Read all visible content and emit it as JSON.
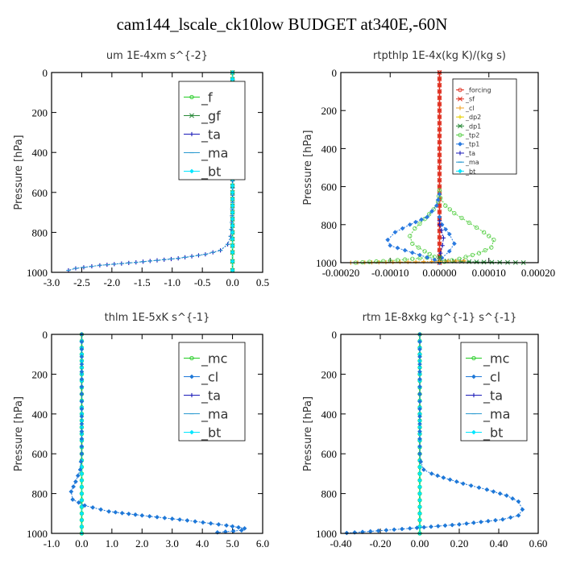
{
  "title": "cam144_lscale_ck10low  BUDGET at340E,-60N",
  "colors": {
    "f": "#22cc22",
    "gf": "#2a8a3a",
    "ta": "#1a1ab8",
    "ma": "#2a9ad0",
    "bt": "#00e6ff",
    "mc": "#22cc22",
    "cl": "#1e78d8",
    "forcing": "#e03020",
    "sf": "#e03020",
    "cl_orange": "#f0a020",
    "dp2": "#e8d000",
    "dp1": "#2a8a3a",
    "tp2": "#5ad04a",
    "tp1": "#2a7ae0"
  },
  "chart_data": [
    {
      "type": "line",
      "title": "um   1E-4xm s^{-2}",
      "ylabel": "Pressure [hPa]",
      "xlim": [
        -3.0,
        0.5
      ],
      "ylim": [
        1000,
        0
      ],
      "xticks": [
        -3.0,
        -2.5,
        -2.0,
        -1.5,
        -1.0,
        -0.5,
        0.0,
        0.5
      ],
      "xticklabels": [
        "-3.0",
        "-2.5",
        "-2.0",
        "-1.5",
        "-1.0",
        "-0.5",
        "0.0",
        "0.5"
      ],
      "yticks": [
        0,
        200,
        400,
        600,
        800,
        1000
      ],
      "legend": [
        "_f",
        "_gf",
        "_ta",
        "_ma",
        "_bt"
      ],
      "legend_keys": [
        "f",
        "gf",
        "ta",
        "ma",
        "bt"
      ],
      "legend_position": "top-right",
      "series": [
        {
          "key": "f",
          "name": "_f",
          "x": [
            0,
            0,
            0,
            0,
            0,
            0,
            0,
            0,
            0,
            0,
            0
          ],
          "y": [
            0,
            100,
            200,
            300,
            400,
            500,
            600,
            700,
            800,
            900,
            990
          ]
        },
        {
          "key": "gf",
          "name": "_gf",
          "x": [
            0,
            0,
            0,
            0,
            0,
            0,
            0,
            0,
            0,
            0,
            0
          ],
          "y": [
            0,
            100,
            200,
            300,
            400,
            500,
            600,
            700,
            800,
            900,
            990
          ]
        },
        {
          "key": "ta",
          "name": "_ta",
          "x": [
            0,
            0,
            0,
            -0.01,
            -0.03,
            -0.08,
            -0.2,
            -0.45,
            -0.9,
            -1.6,
            -2.2,
            -2.6,
            -2.72
          ],
          "y": [
            0,
            400,
            650,
            750,
            820,
            860,
            890,
            910,
            930,
            950,
            965,
            980,
            990
          ]
        },
        {
          "key": "ma",
          "name": "_ma",
          "x": [
            0,
            0,
            0,
            -0.01,
            -0.03,
            -0.08,
            -0.2,
            -0.45,
            -0.9,
            -1.6,
            -2.2,
            -2.6,
            -2.72
          ],
          "y": [
            0,
            400,
            650,
            750,
            820,
            860,
            890,
            910,
            930,
            950,
            965,
            980,
            990
          ]
        },
        {
          "key": "bt",
          "name": "_bt",
          "x": [
            0,
            0,
            0,
            0,
            0,
            0,
            0,
            0,
            0,
            0,
            0
          ],
          "y": [
            0,
            100,
            200,
            300,
            400,
            500,
            600,
            700,
            800,
            900,
            990
          ]
        }
      ]
    },
    {
      "type": "line",
      "title": "rtpthlp   1E-4x(kg K)/(kg s)",
      "ylabel": "Pressure [hPa]",
      "xlim": [
        -0.0002,
        0.0002
      ],
      "ylim": [
        1000,
        0
      ],
      "xticks": [
        -0.0002,
        -0.0001,
        0.0,
        0.0001,
        0.0002
      ],
      "xticklabels": [
        "-0.00020",
        "-0.00010",
        "0.00000",
        "0.00010",
        "0.00020"
      ],
      "yticks": [
        0,
        200,
        400,
        600,
        800,
        1000
      ],
      "legend": [
        "_forcing",
        "_sf",
        "_cl",
        "_dp2",
        "_dp1",
        "_tp2",
        "_tp1",
        "_ta",
        "_ma",
        "_bt"
      ],
      "legend_keys": [
        "forcing",
        "sf",
        "cl_orange",
        "dp2",
        "dp1",
        "tp2",
        "tp1",
        "ta",
        "ma",
        "bt"
      ],
      "legend_position": "top-right",
      "series": [
        {
          "key": "forcing",
          "name": "_forcing",
          "x": [
            0,
            0,
            0,
            0,
            0,
            0,
            0,
            0,
            0,
            0,
            0
          ],
          "y": [
            0,
            100,
            200,
            300,
            400,
            500,
            600,
            700,
            800,
            900,
            1000
          ]
        },
        {
          "key": "sf",
          "name": "_sf",
          "x": [
            0,
            0,
            0,
            0,
            0,
            0,
            0,
            0,
            0,
            0,
            0
          ],
          "y": [
            0,
            100,
            200,
            300,
            400,
            500,
            600,
            700,
            800,
            900,
            1000
          ]
        },
        {
          "key": "tp2",
          "name": "_tp2",
          "x": [
            0,
            2e-06,
            1.2e-05,
            3e-05,
            6e-05,
            9e-05,
            0.00011,
            0.000105,
            8e-05,
            4e-05,
            1e-05
          ],
          "y": [
            620,
            660,
            700,
            740,
            790,
            840,
            880,
            920,
            950,
            980,
            995
          ]
        },
        {
          "key": "tp2b",
          "name": "_tp2",
          "x": [
            0,
            -3e-06,
            -1.2e-05,
            -3e-05,
            -5e-05,
            -6e-05,
            -5.5e-05,
            -3e-05,
            -1e-05,
            -0.0001,
            -0.00017
          ],
          "y": [
            620,
            680,
            720,
            770,
            820,
            860,
            900,
            940,
            970,
            990,
            1000
          ]
        },
        {
          "key": "tp1",
          "name": "_tp1",
          "x": [
            0,
            -6e-06,
            -2.5e-05,
            -6e-05,
            -9e-05,
            -0.000105,
            -0.0001,
            -7e-05,
            -4e-05,
            -1e-05,
            0
          ],
          "y": [
            640,
            700,
            760,
            800,
            840,
            880,
            910,
            935,
            960,
            985,
            1000
          ]
        },
        {
          "key": "tp1b",
          "name": "_tp1",
          "x": [
            0,
            5e-06,
            2e-05,
            3e-05,
            2e-05,
            5e-06,
            0
          ],
          "y": [
            760,
            800,
            850,
            900,
            940,
            975,
            1000
          ]
        },
        {
          "key": "ta",
          "name": "_ta",
          "x": [
            0,
            0,
            4e-06,
            8e-06,
            6e-06,
            2e-06,
            0
          ],
          "y": [
            780,
            800,
            830,
            870,
            910,
            950,
            990
          ]
        },
        {
          "key": "dp1",
          "name": "_dp1",
          "x": [
            0,
            0,
            9e-05,
            0.00017
          ],
          "y": [
            970,
            990,
            997,
            1000
          ]
        },
        {
          "key": "cl_orange",
          "name": "_cl",
          "x": [
            -0.00018,
            -8e-05,
            0,
            5e-05
          ],
          "y": [
            1000,
            997,
            993,
            990
          ]
        }
      ]
    },
    {
      "type": "line",
      "title": "thlm   1E-5xK s^{-1}",
      "ylabel": "Pressure [hPa]",
      "xlim": [
        -1.0,
        6.0
      ],
      "ylim": [
        1000,
        0
      ],
      "xticks": [
        -1.0,
        0.0,
        1.0,
        2.0,
        3.0,
        4.0,
        5.0,
        6.0
      ],
      "xticklabels": [
        "-1.0",
        "0.0",
        "1.0",
        "2.0",
        "3.0",
        "4.0",
        "5.0",
        "6.0"
      ],
      "yticks": [
        0,
        200,
        400,
        600,
        800,
        1000
      ],
      "legend": [
        "_mc",
        "_cl",
        "_ta",
        "_ma",
        "_bt"
      ],
      "legend_keys": [
        "mc",
        "cl",
        "ta",
        "ma",
        "bt"
      ],
      "legend_position": "top-right",
      "series": [
        {
          "key": "mc",
          "name": "_mc",
          "x": [
            0,
            0,
            0,
            0,
            0,
            0,
            0,
            0,
            0,
            0,
            0
          ],
          "y": [
            0,
            100,
            200,
            300,
            400,
            500,
            600,
            700,
            800,
            900,
            1000
          ]
        },
        {
          "key": "bt",
          "name": "_bt",
          "x": [
            0,
            0,
            0,
            0,
            0,
            0,
            0,
            0,
            0,
            0,
            0
          ],
          "y": [
            0,
            100,
            200,
            300,
            400,
            500,
            600,
            700,
            800,
            900,
            1000
          ]
        },
        {
          "key": "cl",
          "name": "_cl",
          "x": [
            0,
            0,
            -0.05,
            -0.2,
            -0.35,
            -0.3,
            0.1,
            0.9,
            2.0,
            3.5,
            4.8,
            5.4,
            5.3,
            4.5
          ],
          "y": [
            0,
            600,
            680,
            740,
            790,
            830,
            860,
            890,
            910,
            935,
            960,
            975,
            985,
            995
          ]
        }
      ]
    },
    {
      "type": "line",
      "title": "rtm   1E-8xkg kg^{-1} s^{-1}",
      "ylabel": "Pressure [hPa]",
      "xlim": [
        -0.4,
        0.6
      ],
      "ylim": [
        1000,
        0
      ],
      "xticks": [
        -0.4,
        -0.2,
        0.0,
        0.2,
        0.4,
        0.6
      ],
      "xticklabels": [
        "-0.40",
        "-0.20",
        "0.00",
        "0.20",
        "0.40",
        "0.60"
      ],
      "yticks": [
        0,
        200,
        400,
        600,
        800,
        1000
      ],
      "legend": [
        "_mc",
        "_cl",
        "_ta",
        "_ma",
        "_bt"
      ],
      "legend_keys": [
        "mc",
        "cl",
        "ta",
        "ma",
        "bt"
      ],
      "legend_position": "top-right",
      "series": [
        {
          "key": "mc",
          "name": "_mc",
          "x": [
            0,
            0,
            0,
            0,
            0,
            0,
            0,
            0,
            0,
            0,
            0
          ],
          "y": [
            0,
            100,
            200,
            300,
            400,
            500,
            600,
            700,
            800,
            900,
            1000
          ]
        },
        {
          "key": "bt",
          "name": "_bt",
          "x": [
            0,
            0,
            0,
            0,
            0,
            0,
            0,
            0,
            0,
            0,
            0
          ],
          "y": [
            0,
            100,
            200,
            300,
            400,
            500,
            600,
            700,
            800,
            900,
            1000
          ]
        },
        {
          "key": "cl",
          "name": "_cl",
          "x": [
            0,
            0,
            0.005,
            0.02,
            0.06,
            0.12,
            0.22,
            0.34,
            0.44,
            0.5,
            0.52,
            0.5,
            0.42,
            0.2,
            -0.05,
            -0.25,
            -0.37
          ],
          "y": [
            0,
            600,
            640,
            680,
            700,
            720,
            750,
            780,
            810,
            840,
            880,
            910,
            930,
            955,
            975,
            990,
            998
          ]
        }
      ]
    }
  ]
}
